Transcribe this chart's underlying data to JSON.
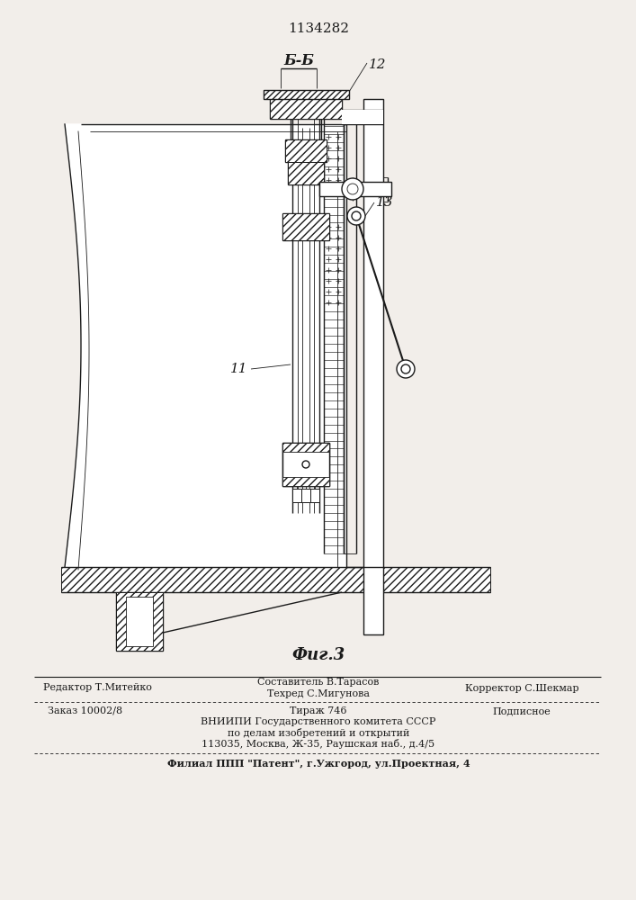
{
  "title": "1134282",
  "fig_label": "Фиг.3",
  "label_12": "12",
  "label_13": "13",
  "label_11": "11",
  "label_bb": "Б-Б",
  "footer_editor": "Редактор Т.Митейко",
  "footer_compiler": "Составитель В.Тарасов",
  "footer_techred": "Техред С.Мигунова",
  "footer_corrector": "Корректор С.Шекмар",
  "footer_order": "Заказ 10002/8",
  "footer_tirazh": "Тираж 746",
  "footer_podpisnoe": "Подписное",
  "footer_vniip1": "ВНИИПИ Государственного комитета СССР",
  "footer_vniip2": "по делам изобретений и открытий",
  "footer_vniip3": "113035, Москва, Ж-35, Раушская наб., д.4/5",
  "footer_filial": "Филиал ППП \"Патент\", г.Ужгород, ул.Проектная, 4",
  "bg_color": "#f2eeea"
}
